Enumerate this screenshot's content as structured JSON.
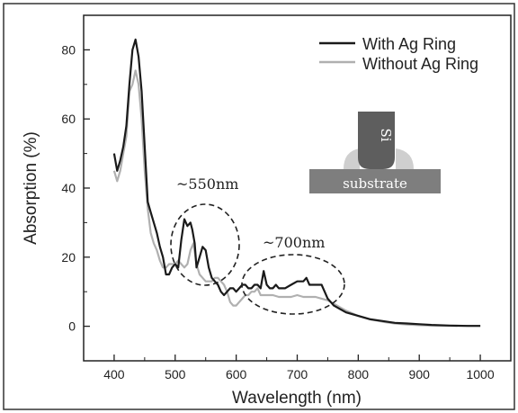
{
  "chart_data": {
    "type": "line",
    "xlabel": "Wavelength (nm)",
    "ylabel": "Absorption (%)",
    "xlim": [
      350,
      1050
    ],
    "ylim": [
      -10,
      90
    ],
    "x_ticks": [
      400,
      500,
      600,
      700,
      800,
      900,
      1000
    ],
    "y_ticks": [
      0,
      20,
      40,
      60,
      80
    ],
    "grid": false,
    "legend_position": "top-right",
    "series": [
      {
        "name": "With Ag Ring",
        "color": "#1a1a1a",
        "x": [
          400,
          405,
          410,
          415,
          420,
          425,
          430,
          435,
          440,
          445,
          450,
          455,
          460,
          465,
          470,
          475,
          480,
          485,
          490,
          495,
          500,
          505,
          510,
          515,
          520,
          525,
          528,
          532,
          535,
          540,
          545,
          550,
          555,
          560,
          565,
          570,
          575,
          580,
          585,
          590,
          595,
          600,
          605,
          610,
          615,
          620,
          625,
          630,
          635,
          640,
          645,
          650,
          655,
          660,
          665,
          670,
          680,
          690,
          700,
          710,
          715,
          720,
          730,
          740,
          745,
          750,
          755,
          760,
          770,
          780,
          800,
          820,
          840,
          860,
          880,
          900,
          920,
          950,
          980,
          1000
        ],
        "values": [
          50,
          45,
          48,
          52,
          58,
          70,
          80,
          83,
          78,
          68,
          52,
          36,
          33,
          30,
          27,
          23,
          20,
          15,
          15,
          17,
          18,
          17,
          25,
          31,
          29,
          30,
          28,
          24,
          17,
          20,
          23,
          22,
          17,
          14,
          13,
          12,
          10,
          9,
          10,
          11,
          11,
          10,
          11,
          12,
          12,
          11,
          11,
          12,
          12,
          11,
          16,
          12,
          11,
          11,
          12,
          11,
          11,
          12,
          13,
          13,
          14,
          12,
          12,
          12,
          10,
          8,
          7,
          6,
          5,
          4,
          3,
          2,
          1.5,
          1,
          0.8,
          0.6,
          0.4,
          0.2,
          0.1,
          0.1
        ]
      },
      {
        "name": "Without Ag Ring",
        "color": "#b0b0b0",
        "x": [
          400,
          405,
          410,
          415,
          420,
          425,
          430,
          435,
          440,
          445,
          450,
          455,
          460,
          465,
          470,
          475,
          480,
          485,
          490,
          495,
          500,
          505,
          510,
          515,
          520,
          525,
          530,
          535,
          540,
          545,
          550,
          555,
          560,
          565,
          570,
          575,
          580,
          585,
          590,
          595,
          600,
          605,
          610,
          615,
          620,
          625,
          630,
          635,
          640,
          645,
          650,
          660,
          670,
          680,
          690,
          700,
          710,
          720,
          730,
          740,
          750,
          760,
          770,
          780,
          800,
          820,
          840,
          860,
          880,
          900,
          920,
          950,
          980,
          1000
        ],
        "values": [
          45,
          42,
          45,
          50,
          55,
          68,
          70,
          74,
          70,
          60,
          45,
          34,
          27,
          24,
          22,
          19,
          17,
          17,
          18,
          18,
          18,
          19,
          18,
          17,
          18,
          22,
          24,
          18,
          15,
          14,
          13,
          13,
          13,
          14,
          14,
          13,
          12,
          10,
          7,
          6,
          6,
          7,
          8,
          9,
          9,
          10,
          10,
          11,
          9,
          9,
          9,
          9,
          8.5,
          8.5,
          8.5,
          9,
          8.5,
          8.5,
          8.5,
          8,
          7.5,
          6.5,
          5.5,
          4.5,
          3,
          2,
          1.3,
          0.8,
          0.5,
          0.3,
          0.2,
          0.1,
          0.1,
          0.1
        ]
      }
    ],
    "annotations": [
      {
        "text": "~550nm",
        "x": 551,
        "y": 31
      },
      {
        "text": "~700nm",
        "x": 708,
        "y": 21
      }
    ]
  },
  "inset": {
    "si_label": "Si",
    "substrate_label": "substrate"
  }
}
